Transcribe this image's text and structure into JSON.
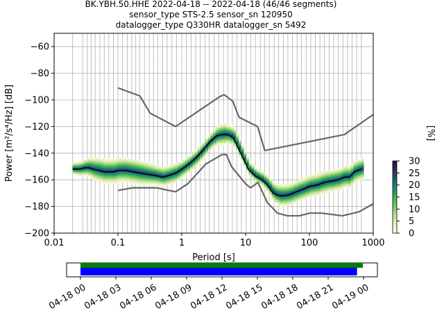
{
  "title_lines": [
    "BK.YBH.50.HHE   2022-04-18 -- 2022-04-18  (46/46 segments)",
    "sensor_type STS-2.5 sensor_sn 120950",
    "datalogger_type Q330HR datalogger_sn 5492"
  ],
  "colors": {
    "background": "#ffffff",
    "grid": "#b0b0b0",
    "noise_models": "#666666",
    "mode_line": "#000000",
    "coverage_data": "#008000",
    "coverage_gaps": "#0000ff",
    "colormap": [
      "#fffae5",
      "#e7f2bf",
      "#b9de95",
      "#7cc860",
      "#38ae59",
      "#1d8a72",
      "#1f5d7a",
      "#2c2c5e",
      "#2d0a3c"
    ]
  },
  "chart_data": [
    {
      "type": "heatmap",
      "subtype": "probabilistic power spectral density",
      "title": "BK.YBH.50.HHE   2022-04-18 -- 2022-04-18  (46/46 segments)",
      "xlabel": "Period [s]",
      "ylabel": "Power [m²/s⁴/Hz] [dB]",
      "xscale": "log",
      "xlim": [
        0.01,
        1000
      ],
      "ylim": [
        -200,
        -50
      ],
      "xticks": [
        0.01,
        0.1,
        1,
        10,
        100,
        1000
      ],
      "xtick_labels": [
        "0.01",
        "0.1",
        "1",
        "10",
        "100",
        "1000"
      ],
      "yticks": [
        -200,
        -180,
        -160,
        -140,
        -120,
        -100,
        -80,
        -60
      ],
      "ytick_labels": [
        "−200",
        "−180",
        "−160",
        "−140",
        "−120",
        "−100",
        "−80",
        "−60"
      ],
      "grid": true,
      "vertical_grid_periods": [
        0.0195,
        0.028,
        0.033,
        0.038,
        0.044,
        0.052,
        0.061,
        0.072,
        0.085,
        0.1,
        0.118,
        0.14,
        0.165,
        0.19,
        0.22,
        0.26,
        0.31,
        0.36,
        0.42,
        0.5,
        0.59,
        0.7,
        0.83,
        1.0,
        1.18,
        1.4,
        1.65,
        1.95,
        2.3,
        2.7,
        3.2,
        3.8,
        4.5,
        5.3,
        6.2,
        7.3,
        8.6,
        10.2,
        12.0,
        14.2,
        17,
        20,
        23.5,
        28,
        33,
        39,
        46,
        54,
        64,
        75,
        89,
        105,
        124,
        146,
        172,
        204,
        240,
        284,
        335,
        395,
        465,
        550,
        650
      ],
      "colorbar": {
        "label": "[%]",
        "range": [
          0,
          30
        ],
        "ticks": [
          0,
          5,
          10,
          15,
          20,
          25,
          30
        ],
        "tick_labels": [
          "0",
          "5",
          "10",
          "15",
          "20",
          "25",
          "30"
        ]
      },
      "density_mode": {
        "x": [
          0.0195,
          0.025,
          0.03,
          0.035,
          0.04,
          0.05,
          0.06,
          0.07,
          0.085,
          0.1,
          0.13,
          0.17,
          0.22,
          0.3,
          0.4,
          0.5,
          0.6,
          0.8,
          1.0,
          1.3,
          1.7,
          2.2,
          2.8,
          3.5,
          4.3,
          5.0,
          5.8,
          6.5,
          7.5,
          9,
          11,
          14,
          18,
          22,
          27,
          33,
          40,
          50,
          62,
          80,
          100,
          130,
          170,
          220,
          280,
          350,
          420,
          500,
          650
        ],
        "y": [
          -152,
          -152,
          -151,
          -151,
          -152,
          -153,
          -154,
          -154,
          -154,
          -153,
          -153,
          -154,
          -155,
          -156,
          -157,
          -158,
          -157,
          -155,
          -152,
          -148,
          -143,
          -137,
          -131,
          -127,
          -126,
          -126,
          -127,
          -129,
          -135,
          -143,
          -152,
          -157,
          -160,
          -164,
          -170,
          -172,
          -172,
          -171,
          -169,
          -167,
          -165,
          -164,
          -162,
          -161,
          -160,
          -158,
          -158,
          -154,
          -152
        ]
      },
      "density_spread_db": [
        5,
        6,
        7,
        8,
        9,
        10,
        10,
        10,
        10,
        10,
        10,
        10,
        10,
        9,
        8,
        8,
        8,
        8,
        7,
        7,
        7,
        7,
        7,
        8,
        9,
        8,
        8,
        8,
        8,
        7,
        6,
        6,
        6,
        7,
        8,
        9,
        9,
        9,
        9,
        9,
        9,
        9,
        9,
        9,
        9,
        9,
        9,
        9,
        9
      ],
      "mean_line": {
        "name": "",
        "x": [
          0.0195,
          0.025,
          0.03,
          0.035,
          0.04,
          0.05,
          0.06,
          0.07,
          0.085,
          0.1,
          0.13,
          0.17,
          0.22,
          0.3,
          0.4,
          0.5,
          0.6,
          0.8,
          1.0,
          1.3,
          1.7,
          2.2,
          2.8,
          3.5,
          4.3,
          5.0,
          5.8,
          6.5,
          7.5,
          9,
          11,
          14,
          18,
          22,
          27,
          33,
          40,
          50,
          62,
          80,
          100,
          130,
          170,
          220,
          280,
          350,
          420,
          500,
          650
        ],
        "y": [
          -152,
          -152,
          -151,
          -151,
          -152,
          -153,
          -154,
          -154,
          -154,
          -153,
          -153,
          -154,
          -155,
          -156,
          -157,
          -158,
          -157,
          -155,
          -152,
          -148,
          -143,
          -137,
          -131,
          -127,
          -126,
          -126,
          -127,
          -129,
          -135,
          -143,
          -152,
          -157,
          -160,
          -164,
          -170,
          -172,
          -172,
          -171,
          -169,
          -167,
          -165,
          -164,
          -162,
          -161,
          -160,
          -158,
          -158,
          -154,
          -152
        ]
      },
      "noise_model_high": {
        "name": "",
        "x": [
          0.1,
          0.22,
          0.32,
          0.8,
          3.8,
          4.6,
          6.3,
          7.9,
          15.4,
          20,
          354,
          1000
        ],
        "y": [
          -91,
          -97,
          -110,
          -120,
          -98,
          -96,
          -101,
          -113,
          -120,
          -138,
          -126,
          -111
        ]
      },
      "noise_model_low": {
        "name": "",
        "x": [
          0.1,
          0.17,
          0.4,
          0.8,
          1.24,
          2.4,
          4.3,
          5.0,
          6.0,
          10.0,
          12.0,
          15.6,
          21.9,
          31.6,
          45,
          70,
          101,
          154,
          328,
          600,
          1000
        ],
        "y": [
          -168,
          -166,
          -166,
          -169,
          -163,
          -148,
          -141,
          -141,
          -150,
          -163,
          -166,
          -162,
          -177,
          -185,
          -187,
          -187,
          -185,
          -185,
          -187,
          -184,
          -178
        ]
      }
    },
    {
      "type": "bar",
      "subtype": "data coverage timeline",
      "title": "",
      "xlabel": "",
      "ylabel": "",
      "x_range": [
        "04-18 00",
        "04-19 00"
      ],
      "xtick_labels": [
        "04-18 00",
        "04-18 03",
        "04-18 06",
        "04-18 09",
        "04-18 12",
        "04-18 15",
        "04-18 18",
        "04-18 21",
        "04-19 00"
      ],
      "xtick_hours": [
        0,
        3,
        6,
        9,
        12,
        15,
        18,
        21,
        24
      ],
      "series": [
        {
          "start_hour": 0.0,
          "end_hour": 23.95
        },
        {
          "start_hour": 0.0,
          "end_hour": 23.45
        }
      ]
    }
  ]
}
